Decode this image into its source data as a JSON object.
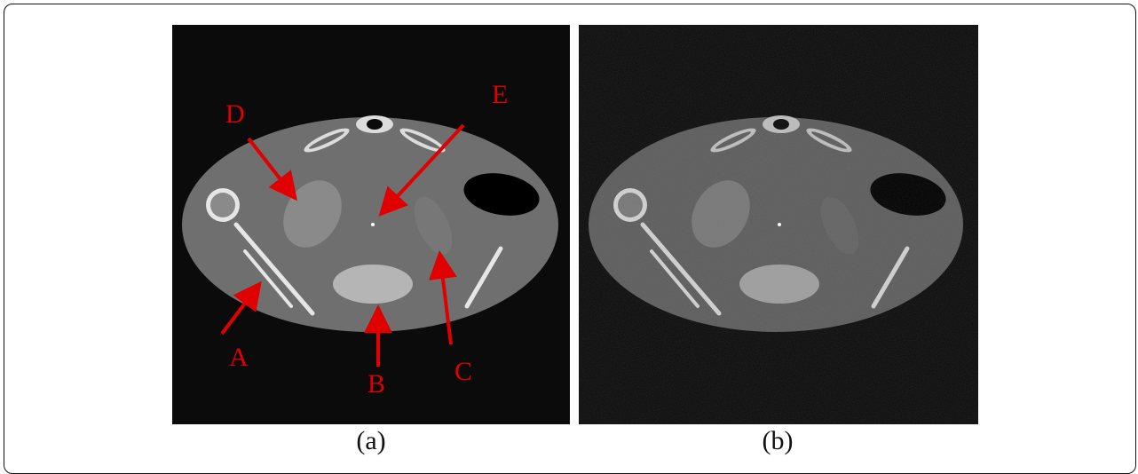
{
  "figure": {
    "panels": [
      {
        "id": "a",
        "caption": "(a)",
        "description_kind": "phantom-reference",
        "annotations": [
          {
            "label": "A"
          },
          {
            "label": "B"
          },
          {
            "label": "C"
          },
          {
            "label": "D"
          },
          {
            "label": "E"
          }
        ]
      },
      {
        "id": "b",
        "caption": "(b)",
        "description_kind": "phantom-reconstruction"
      }
    ],
    "colors": {
      "background": "#0b0b0b",
      "body": "#6f6f6f",
      "bright": "#e6e6e6",
      "arrow": "#e00000"
    }
  }
}
